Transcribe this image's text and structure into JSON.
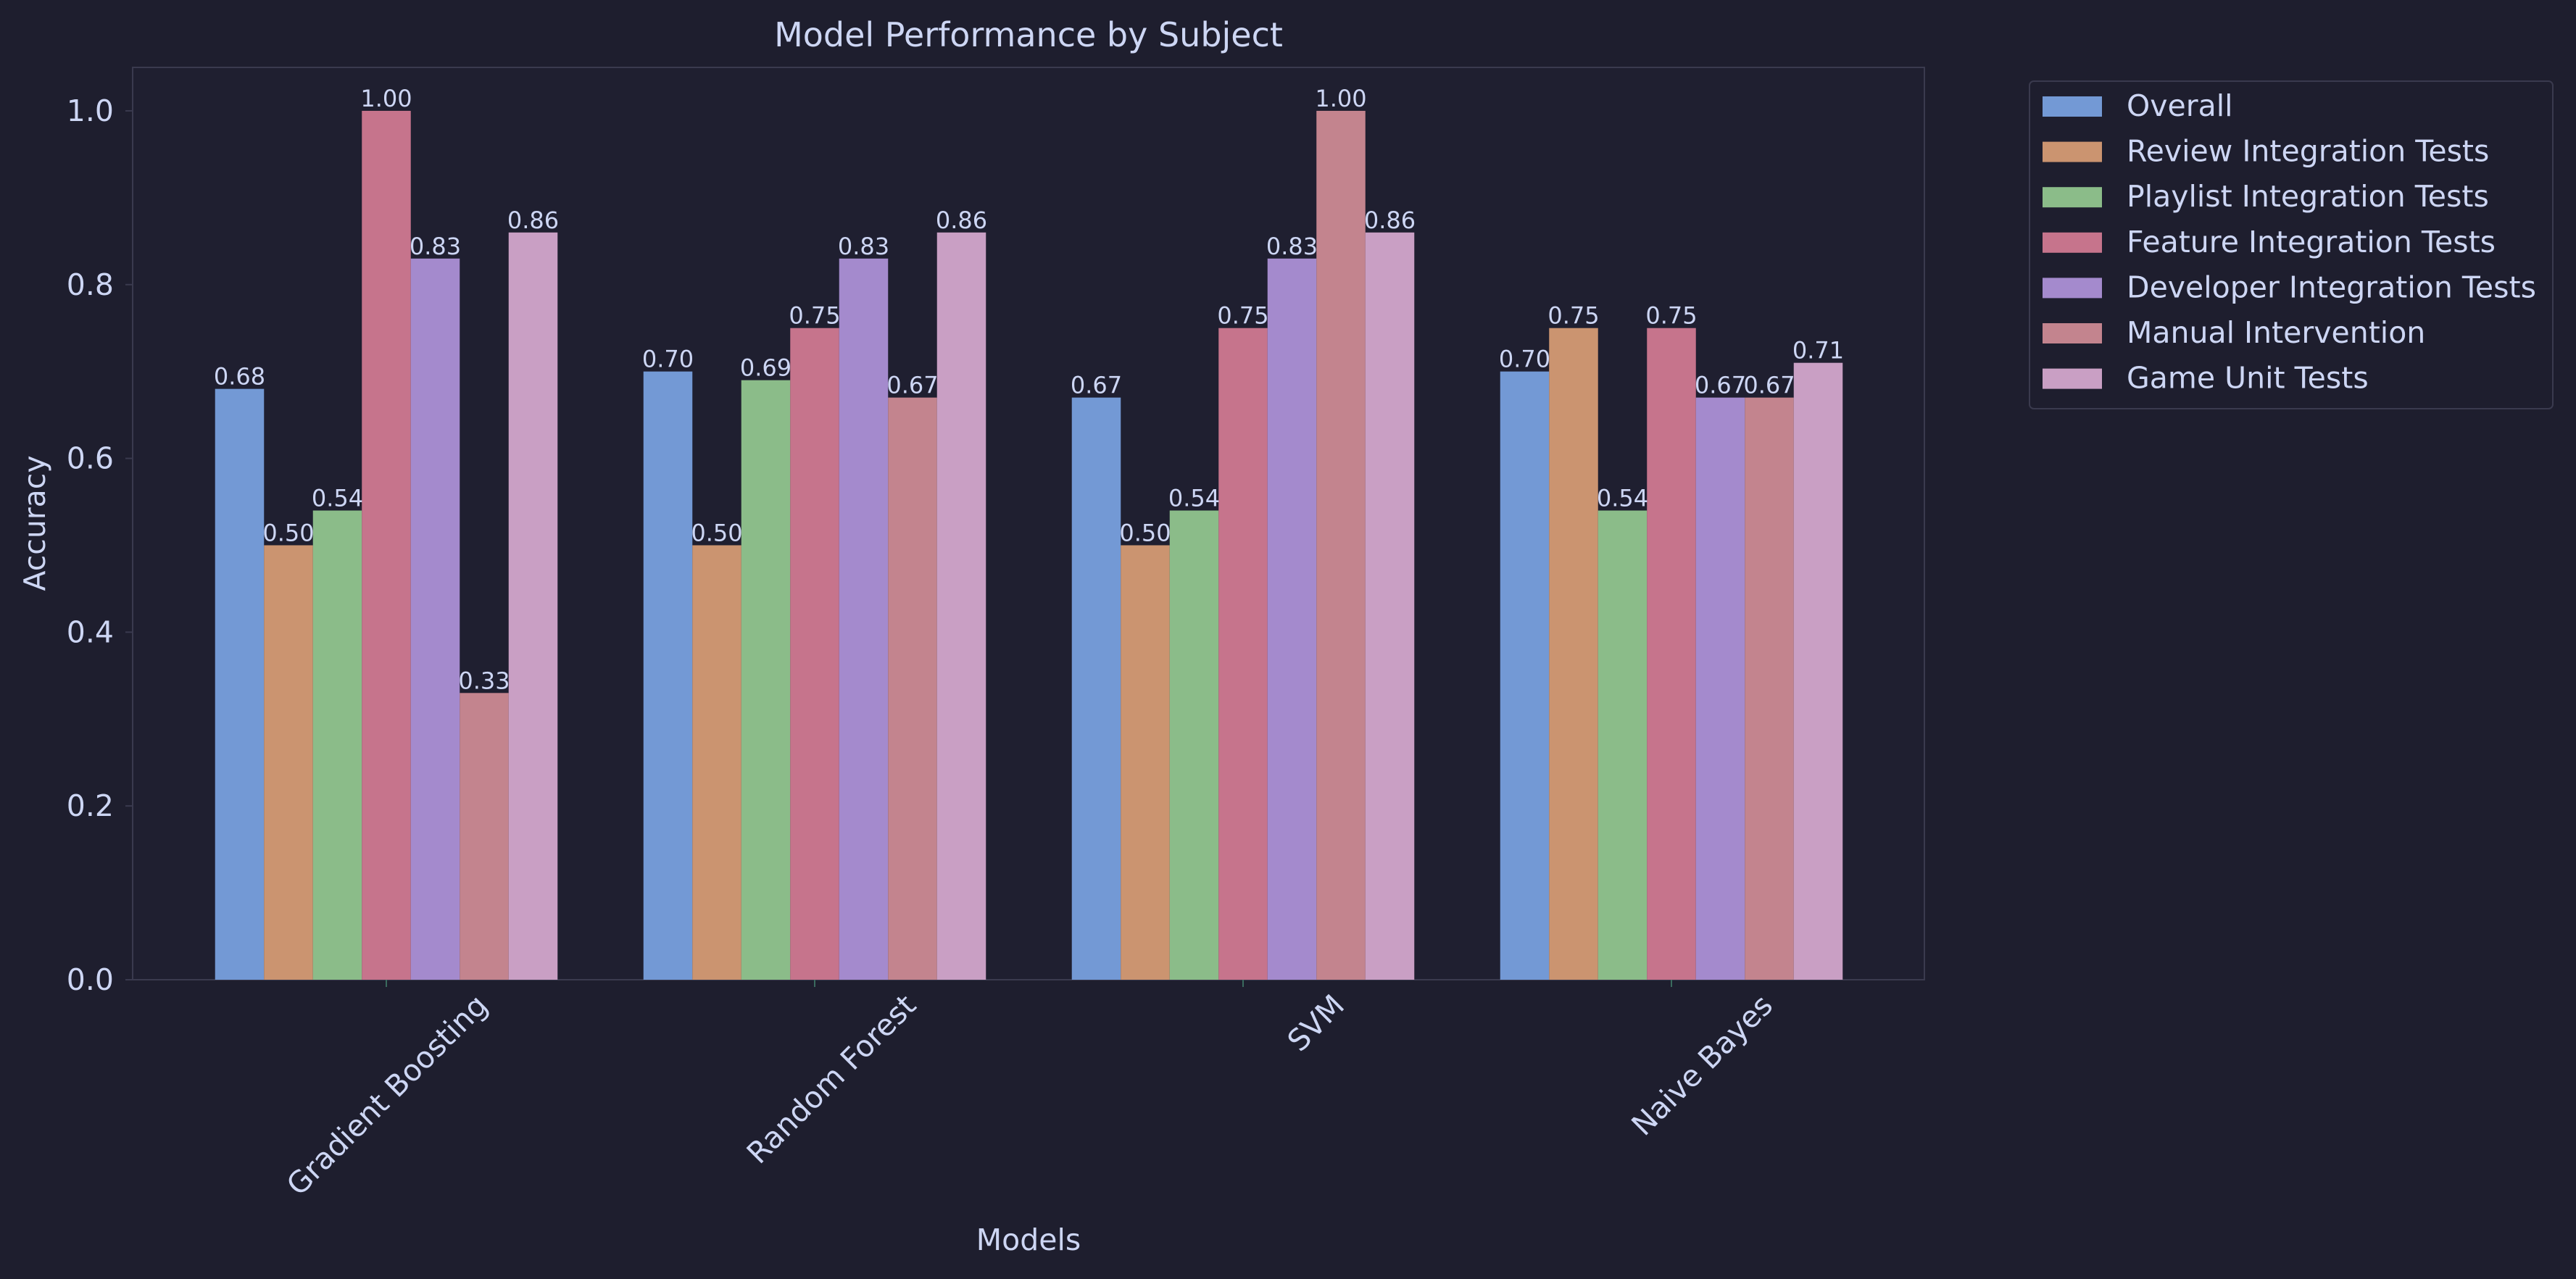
{
  "chart_data": {
    "type": "bar",
    "title": "Model Performance by Subject",
    "xlabel": "Models",
    "ylabel": "Accuracy",
    "ylim": [
      0,
      1.05
    ],
    "yticks": [
      0.0,
      0.2,
      0.4,
      0.6,
      0.8,
      1.0
    ],
    "ytick_labels": [
      "0.0",
      "0.2",
      "0.4",
      "0.6",
      "0.8",
      "1.0"
    ],
    "categories": [
      "Gradient Boosting",
      "Random Forest",
      "SVM",
      "Naive Bayes"
    ],
    "legend_position": "outside-top-right",
    "grid": false,
    "series": [
      {
        "name": "Overall",
        "color": "#7399d5",
        "values": [
          0.68,
          0.7,
          0.67,
          0.7
        ],
        "labels": [
          "0.68",
          "0.70",
          "0.67",
          "0.70"
        ]
      },
      {
        "name": "Review Integration Tests",
        "color": "#cb9470",
        "values": [
          0.5,
          0.5,
          0.5,
          0.75
        ],
        "labels": [
          "0.50",
          "0.50",
          "0.50",
          "0.75"
        ]
      },
      {
        "name": "Playlist Integration Tests",
        "color": "#8bbc89",
        "values": [
          0.54,
          0.69,
          0.54,
          0.54
        ],
        "labels": [
          "0.54",
          "0.69",
          "0.54",
          "0.54"
        ]
      },
      {
        "name": "Feature Integration Tests",
        "color": "#c6748c",
        "values": [
          1.0,
          0.75,
          0.75,
          0.75
        ],
        "labels": [
          "1.00",
          "0.75",
          "0.75",
          "0.75"
        ]
      },
      {
        "name": "Developer Integration Tests",
        "color": "#a48acd",
        "values": [
          0.83,
          0.83,
          0.83,
          0.67
        ],
        "labels": [
          "0.83",
          "0.83",
          "0.83",
          "0.67"
        ]
      },
      {
        "name": "Manual Intervention",
        "color": "#c3848e",
        "values": [
          0.33,
          0.67,
          1.0,
          0.67
        ],
        "labels": [
          "0.33",
          "0.67",
          "1.00",
          "0.67"
        ]
      },
      {
        "name": "Game Unit Tests",
        "color": "#c99fc4",
        "values": [
          0.86,
          0.86,
          0.86,
          0.71
        ],
        "labels": [
          "0.86",
          "0.86",
          "0.86",
          "0.71"
        ]
      }
    ]
  }
}
